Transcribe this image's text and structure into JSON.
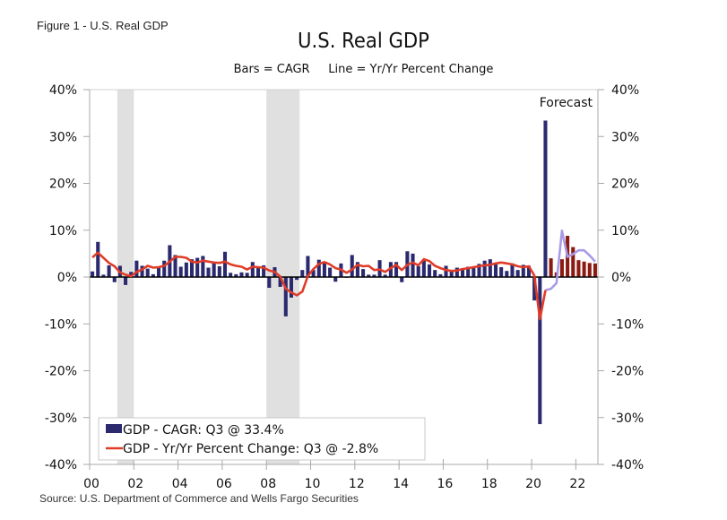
{
  "figure_label": "Figure 1 - U.S. Real GDP",
  "source": "Source: U.S. Department of Commerce and Wells Fargo Securities",
  "chart_data": {
    "type": "bar",
    "title": "U.S. Real GDP",
    "subtitle": "Bars = CAGR     Line = Yr/Yr Percent Change",
    "xlabel": "",
    "ylabel_left": "",
    "ylabel_right": "",
    "ylim": [
      -40,
      40
    ],
    "yticks": [
      40,
      30,
      20,
      10,
      0,
      -10,
      -20,
      -30,
      -40
    ],
    "ytick_labels": [
      "40%",
      "30%",
      "20%",
      "10%",
      "0%",
      "-10%",
      "-20%",
      "-30%",
      "-40%"
    ],
    "x_start": "2000Q1",
    "x_end": "2022Q4",
    "xtick_labels": [
      "00",
      "02",
      "04",
      "06",
      "08",
      "10",
      "12",
      "14",
      "16",
      "18",
      "20",
      "22"
    ],
    "grid": false,
    "annotation": "Forecast",
    "recessions": [
      {
        "start": "2001Q2",
        "end": "2001Q4"
      },
      {
        "start": "2008Q1",
        "end": "2009Q2"
      }
    ],
    "legend": {
      "position": "bottom-left",
      "entries": [
        {
          "label": "GDP - CAGR: Q3 @ 33.4%",
          "color": "#2b2a6e",
          "kind": "bar"
        },
        {
          "label": "GDP - Yr/Yr Percent Change: Q3 @ -2.8%",
          "color": "#e03c28",
          "kind": "line"
        }
      ]
    },
    "colors": {
      "actual_bar": "#2b2a6e",
      "forecast_bar": "#8b1a12",
      "actual_line": "#e03c28",
      "forecast_line": "#a99be6",
      "recession": "#e0e0e0"
    },
    "series": [
      {
        "name": "GDP - CAGR (actual)",
        "start": "2000Q1",
        "values": [
          1.2,
          7.5,
          0.5,
          2.5,
          -1.1,
          2.4,
          -1.7,
          1.1,
          3.5,
          2.4,
          1.8,
          0.6,
          2.1,
          3.5,
          6.8,
          4.7,
          2.2,
          3.1,
          3.8,
          4.1,
          4.5,
          2.0,
          3.2,
          2.3,
          5.4,
          0.9,
          0.6,
          1.0,
          0.9,
          3.2,
          2.2,
          2.5,
          -2.3,
          2.1,
          -2.1,
          -8.4,
          -4.4,
          -0.6,
          1.5,
          4.5,
          1.5,
          3.7,
          3.0,
          2.0,
          -1.0,
          2.9,
          -0.1,
          4.7,
          3.2,
          1.7,
          0.5,
          0.5,
          3.6,
          0.5,
          3.2,
          3.2,
          -1.1,
          5.5,
          5.0,
          2.3,
          3.8,
          2.7,
          1.5,
          0.6,
          2.4,
          1.2,
          2.0,
          1.9,
          2.2,
          1.9,
          2.8,
          3.5,
          3.8,
          2.7,
          2.1,
          1.3,
          2.9,
          1.5,
          2.6,
          2.4,
          -5.0,
          -31.4,
          33.4
        ]
      },
      {
        "name": "GDP - CAGR (forecast)",
        "start": "2020Q4",
        "values": [
          4.0,
          1.0,
          3.8,
          8.8,
          6.4,
          3.6,
          3.3,
          3.0,
          2.9
        ]
      },
      {
        "name": "GDP - Yr/Yr Percent Change (actual)",
        "start": "2000Q1",
        "values": [
          4.2,
          5.2,
          4.1,
          3.0,
          2.3,
          1.0,
          0.5,
          0.2,
          1.1,
          1.6,
          2.4,
          2.0,
          2.1,
          2.4,
          3.3,
          4.3,
          4.3,
          4.1,
          3.3,
          3.1,
          3.5,
          3.3,
          3.1,
          3.0,
          3.3,
          2.7,
          2.4,
          2.2,
          1.6,
          2.2,
          2.1,
          2.0,
          1.4,
          1.1,
          0.1,
          -2.5,
          -3.3,
          -3.9,
          -3.1,
          0.2,
          1.7,
          2.8,
          3.2,
          2.7,
          1.9,
          1.6,
          0.9,
          1.6,
          2.6,
          2.3,
          2.4,
          1.5,
          1.6,
          1.1,
          1.9,
          2.6,
          1.5,
          2.6,
          3.1,
          2.5,
          3.8,
          3.4,
          2.4,
          1.9,
          1.5,
          1.3,
          1.4,
          1.7,
          1.9,
          2.1,
          2.3,
          2.5,
          2.6,
          2.9,
          3.1,
          2.9,
          2.7,
          2.3,
          2.1,
          2.3,
          0.3,
          -9.0,
          -2.8
        ]
      },
      {
        "name": "GDP - Yr/Yr Percent Change (forecast)",
        "start": "2020Q3",
        "values": [
          -2.8,
          -2.5,
          -1.3,
          9.9,
          4.3,
          4.9,
          5.7,
          5.7,
          4.6,
          3.3
        ]
      }
    ]
  }
}
